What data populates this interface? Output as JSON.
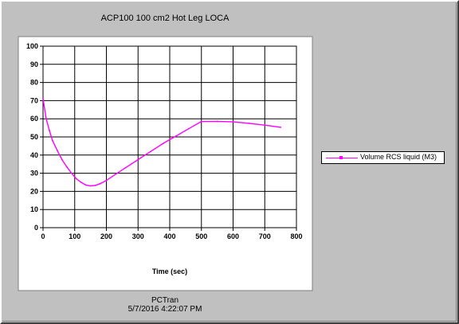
{
  "window": {
    "title": "ACP100 100 cm2 Hot Leg LOCA",
    "footer_app": "PCTran",
    "footer_timestamp": "5/7/2016 4:22:07 PM"
  },
  "colors": {
    "series": "#ff00ff",
    "plot_bg": "#ffffff",
    "window_bg": "#c0c0c0",
    "grid": "#000000"
  },
  "chart_data": {
    "type": "line",
    "title": "ACP100 100 cm2 Hot Leg LOCA",
    "xlabel": "Time (sec)",
    "ylabel": "",
    "xlim": [
      0,
      800
    ],
    "ylim": [
      0,
      100
    ],
    "xticks": [
      0,
      100,
      200,
      300,
      400,
      500,
      600,
      700,
      800
    ],
    "yticks": [
      0,
      10,
      20,
      30,
      40,
      50,
      60,
      70,
      80,
      90,
      100
    ],
    "grid": true,
    "legend": "right",
    "series": [
      {
        "name": "Volume RCS liquid (M3)",
        "color": "#ff00ff",
        "x": [
          0,
          10,
          20,
          30,
          45,
          60,
          75,
          90,
          105,
          120,
          135,
          150,
          165,
          180,
          200,
          230,
          260,
          300,
          340,
          380,
          420,
          460,
          500,
          550,
          600,
          650,
          700,
          750
        ],
        "y": [
          71,
          60,
          53.5,
          48,
          42.5,
          37.5,
          33.5,
          30,
          27,
          25,
          23.5,
          23,
          23.3,
          24.2,
          26,
          29.5,
          33,
          37.5,
          42,
          46.5,
          50.5,
          54.5,
          58.5,
          58.6,
          58.3,
          57.5,
          56.5,
          55.3
        ]
      }
    ]
  },
  "legend": {
    "label": "Volume RCS liquid (M3)"
  }
}
